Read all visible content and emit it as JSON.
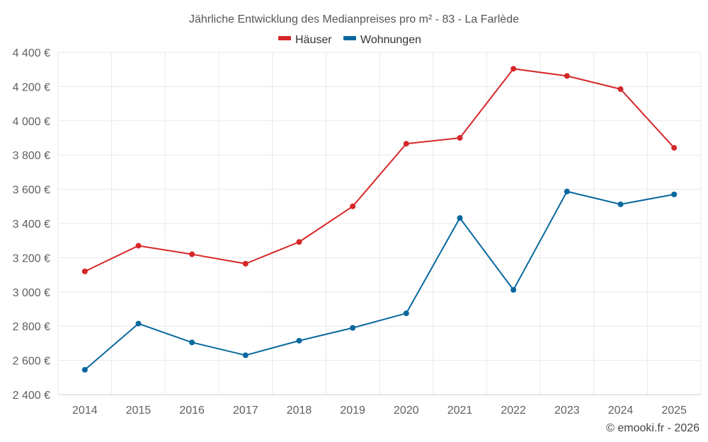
{
  "chart_data": {
    "type": "line",
    "title": "Jährliche Entwicklung des Medianpreises pro m² - 83 - La Farlède",
    "categories": [
      "2014",
      "2015",
      "2016",
      "2017",
      "2018",
      "2019",
      "2020",
      "2021",
      "2022",
      "2023",
      "2024",
      "2025"
    ],
    "series": [
      {
        "name": "Häuser",
        "color": "#d62728",
        "values": [
          3120,
          3270,
          3220,
          3165,
          3292,
          3500,
          3866,
          3900,
          4304,
          4262,
          4185,
          3842
        ]
      },
      {
        "name": "Wohnungen",
        "color": "#08689e",
        "values": [
          2545,
          2815,
          2705,
          2630,
          2715,
          2790,
          2875,
          3432,
          3012,
          3587,
          3512,
          3570
        ]
      }
    ],
    "ylim": [
      2400,
      4400
    ],
    "yticks": [
      2400,
      2600,
      2800,
      3000,
      3200,
      3400,
      3600,
      3800,
      4000,
      4200,
      4400
    ],
    "ytick_labels": [
      "2 400 €",
      "2 600 €",
      "2 800 €",
      "3 000 €",
      "3 200 €",
      "3 400 €",
      "3 600 €",
      "3 800 €",
      "4 000 €",
      "4 200 €",
      "4 400 €"
    ],
    "xlabel": "",
    "ylabel": "",
    "grid": true,
    "legend_position": "top-center"
  },
  "credit": "© emooki.fr - 2026"
}
